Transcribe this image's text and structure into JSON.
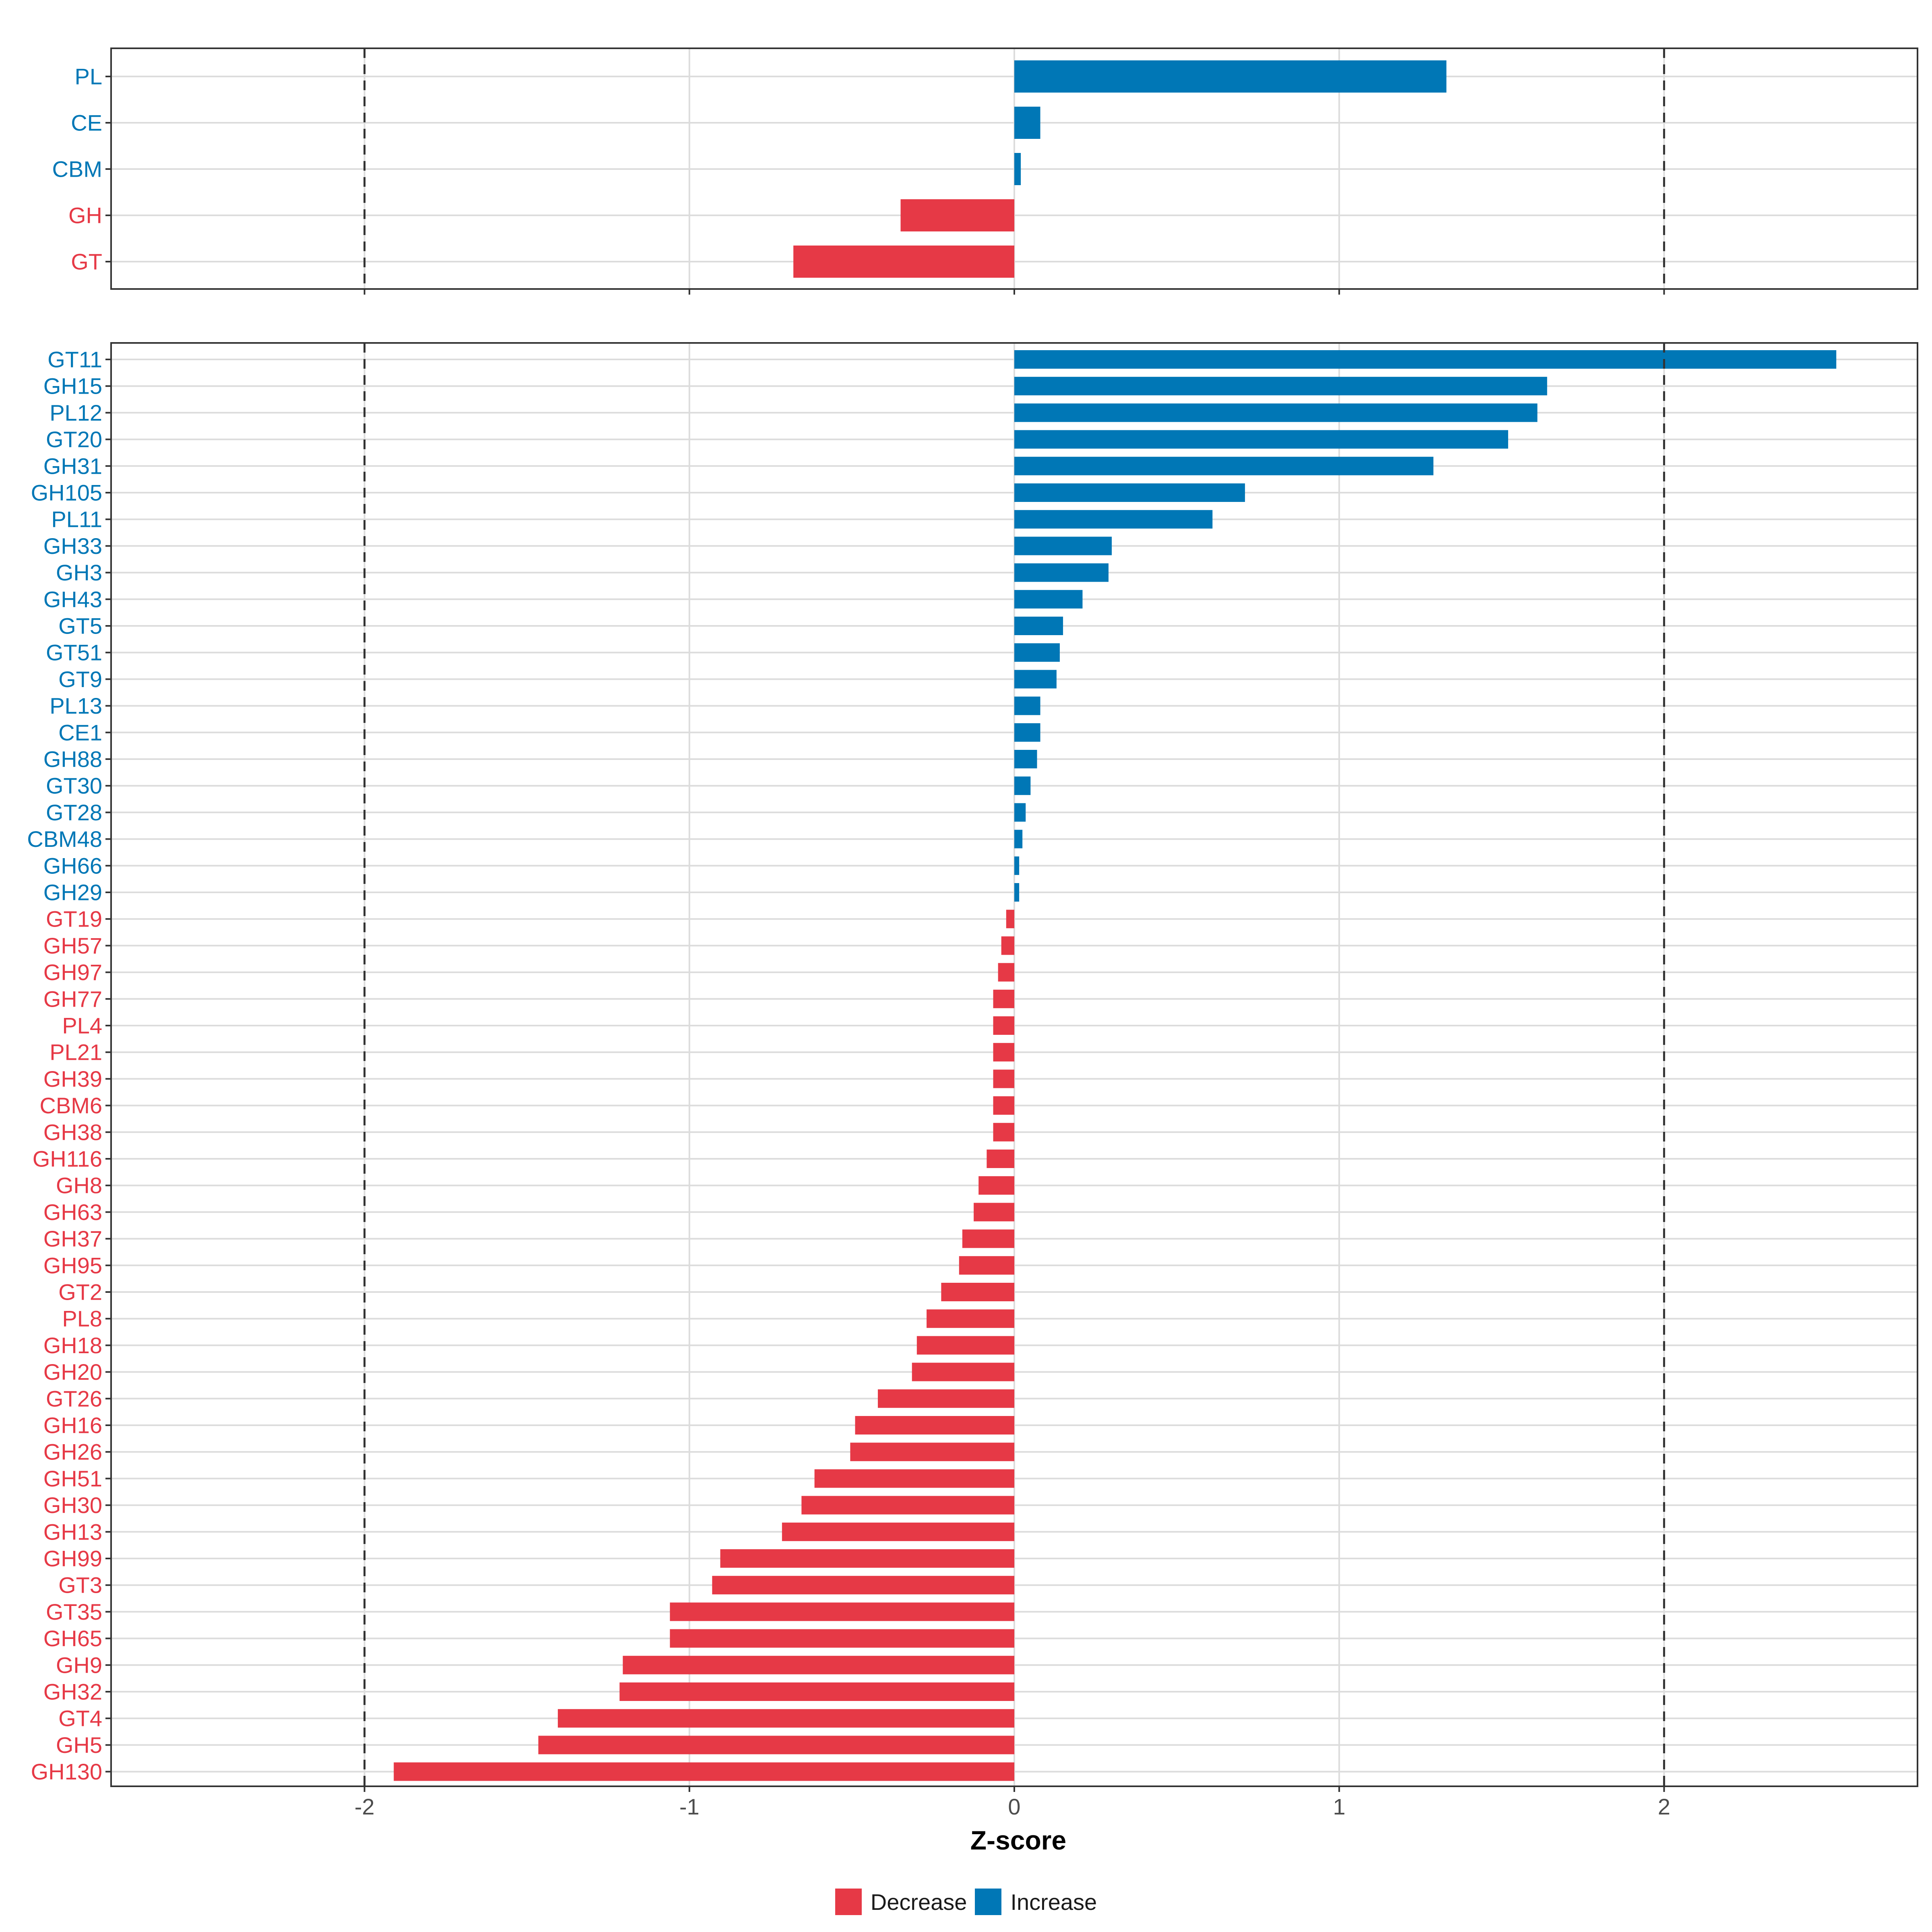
{
  "colors": {
    "decrease": "#e63946",
    "increase": "#0077b6"
  },
  "chart_data": [
    {
      "type": "bar",
      "orientation": "horizontal",
      "panel": "top",
      "xlim": [
        -2.78,
        2.78
      ],
      "ticks": [
        -2,
        -1,
        0,
        1,
        2
      ],
      "reference_lines": [
        -2,
        2
      ],
      "bars": [
        {
          "label": "PL",
          "value": 1.33,
          "direction": "increase"
        },
        {
          "label": "CE",
          "value": 0.08,
          "direction": "increase"
        },
        {
          "label": "CBM",
          "value": 0.02,
          "direction": "increase"
        },
        {
          "label": "GH",
          "value": -0.35,
          "direction": "decrease"
        },
        {
          "label": "GT",
          "value": -0.68,
          "direction": "decrease"
        }
      ]
    },
    {
      "type": "bar",
      "orientation": "horizontal",
      "panel": "bottom",
      "xlim": [
        -2.78,
        2.78
      ],
      "ticks": [
        -2,
        -1,
        0,
        1,
        2
      ],
      "tick_labels": [
        "-2",
        "-1",
        "0",
        "1",
        "2"
      ],
      "reference_lines": [
        -2,
        2
      ],
      "xlabel": "Z-score",
      "bars": [
        {
          "label": "GT11",
          "value": 2.53,
          "direction": "increase"
        },
        {
          "label": "GH15",
          "value": 1.64,
          "direction": "increase"
        },
        {
          "label": "PL12",
          "value": 1.61,
          "direction": "increase"
        },
        {
          "label": "GT20",
          "value": 1.52,
          "direction": "increase"
        },
        {
          "label": "GH31",
          "value": 1.29,
          "direction": "increase"
        },
        {
          "label": "GH105",
          "value": 0.71,
          "direction": "increase"
        },
        {
          "label": "PL11",
          "value": 0.61,
          "direction": "increase"
        },
        {
          "label": "GH33",
          "value": 0.3,
          "direction": "increase"
        },
        {
          "label": "GH3",
          "value": 0.29,
          "direction": "increase"
        },
        {
          "label": "GH43",
          "value": 0.21,
          "direction": "increase"
        },
        {
          "label": "GT5",
          "value": 0.15,
          "direction": "increase"
        },
        {
          "label": "GT51",
          "value": 0.14,
          "direction": "increase"
        },
        {
          "label": "GT9",
          "value": 0.13,
          "direction": "increase"
        },
        {
          "label": "PL13",
          "value": 0.08,
          "direction": "increase"
        },
        {
          "label": "CE1",
          "value": 0.08,
          "direction": "increase"
        },
        {
          "label": "GH88",
          "value": 0.07,
          "direction": "increase"
        },
        {
          "label": "GT30",
          "value": 0.05,
          "direction": "increase"
        },
        {
          "label": "GT28",
          "value": 0.035,
          "direction": "increase"
        },
        {
          "label": "CBM48",
          "value": 0.025,
          "direction": "increase"
        },
        {
          "label": "GH66",
          "value": 0.015,
          "direction": "increase"
        },
        {
          "label": "GH29",
          "value": 0.015,
          "direction": "increase"
        },
        {
          "label": "GT19",
          "value": -0.025,
          "direction": "decrease"
        },
        {
          "label": "GH57",
          "value": -0.04,
          "direction": "decrease"
        },
        {
          "label": "GH97",
          "value": -0.05,
          "direction": "decrease"
        },
        {
          "label": "GH77",
          "value": -0.065,
          "direction": "decrease"
        },
        {
          "label": "PL4",
          "value": -0.065,
          "direction": "decrease"
        },
        {
          "label": "PL21",
          "value": -0.065,
          "direction": "decrease"
        },
        {
          "label": "GH39",
          "value": -0.065,
          "direction": "decrease"
        },
        {
          "label": "CBM6",
          "value": -0.065,
          "direction": "decrease"
        },
        {
          "label": "GH38",
          "value": -0.065,
          "direction": "decrease"
        },
        {
          "label": "GH116",
          "value": -0.085,
          "direction": "decrease"
        },
        {
          "label": "GH8",
          "value": -0.11,
          "direction": "decrease"
        },
        {
          "label": "GH63",
          "value": -0.125,
          "direction": "decrease"
        },
        {
          "label": "GH37",
          "value": -0.16,
          "direction": "decrease"
        },
        {
          "label": "GH95",
          "value": -0.17,
          "direction": "decrease"
        },
        {
          "label": "GT2",
          "value": -0.225,
          "direction": "decrease"
        },
        {
          "label": "PL8",
          "value": -0.27,
          "direction": "decrease"
        },
        {
          "label": "GH18",
          "value": -0.3,
          "direction": "decrease"
        },
        {
          "label": "GH20",
          "value": -0.315,
          "direction": "decrease"
        },
        {
          "label": "GT26",
          "value": -0.42,
          "direction": "decrease"
        },
        {
          "label": "GH16",
          "value": -0.49,
          "direction": "decrease"
        },
        {
          "label": "GH26",
          "value": -0.505,
          "direction": "decrease"
        },
        {
          "label": "GH51",
          "value": -0.615,
          "direction": "decrease"
        },
        {
          "label": "GH30",
          "value": -0.655,
          "direction": "decrease"
        },
        {
          "label": "GH13",
          "value": -0.715,
          "direction": "decrease"
        },
        {
          "label": "GH99",
          "value": -0.905,
          "direction": "decrease"
        },
        {
          "label": "GT3",
          "value": -0.93,
          "direction": "decrease"
        },
        {
          "label": "GT35",
          "value": -1.06,
          "direction": "decrease"
        },
        {
          "label": "GH65",
          "value": -1.06,
          "direction": "decrease"
        },
        {
          "label": "GH9",
          "value": -1.205,
          "direction": "decrease"
        },
        {
          "label": "GH32",
          "value": -1.215,
          "direction": "decrease"
        },
        {
          "label": "GT4",
          "value": -1.405,
          "direction": "decrease"
        },
        {
          "label": "GH5",
          "value": -1.465,
          "direction": "decrease"
        },
        {
          "label": "GH130",
          "value": -1.91,
          "direction": "decrease"
        }
      ]
    }
  ],
  "legend": {
    "decrease_label": "Decrease",
    "increase_label": "Increase"
  }
}
